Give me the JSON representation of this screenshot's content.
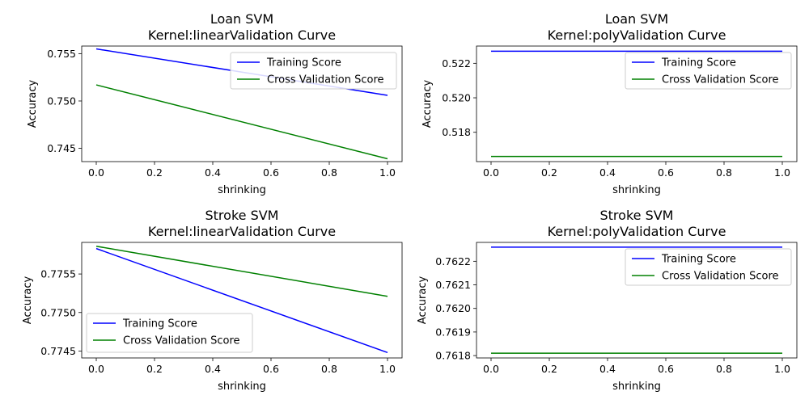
{
  "chart_data": [
    {
      "type": "line",
      "title_line1": "Loan SVM",
      "title_line2": "Kernel:linearValidation Curve",
      "xlabel": "shrinking",
      "ylabel": "Accuracy",
      "x": [
        0,
        1
      ],
      "xlim": [
        -0.05,
        1.05
      ],
      "ylim": [
        0.7436,
        0.7558
      ],
      "xticks": [
        0.0,
        0.2,
        0.4,
        0.6,
        0.8,
        1.0
      ],
      "xtick_labels": [
        "0.0",
        "0.2",
        "0.4",
        "0.6",
        "0.8",
        "1.0"
      ],
      "yticks": [
        0.745,
        0.75,
        0.755
      ],
      "ytick_labels": [
        "0.745",
        "0.750",
        "0.755"
      ],
      "legend_loc": "upper right",
      "grid": false,
      "series": [
        {
          "name": "Training Score",
          "color": "#0000ff",
          "values": [
            0.7555,
            0.7506
          ]
        },
        {
          "name": "Cross Validation Score",
          "color": "#008000",
          "values": [
            0.7517,
            0.7439
          ]
        }
      ]
    },
    {
      "type": "line",
      "title_line1": "Loan SVM",
      "title_line2": "Kernel:polyValidation Curve",
      "xlabel": "shrinking",
      "ylabel": "Accuracy",
      "x": [
        0,
        1
      ],
      "xlim": [
        -0.05,
        1.05
      ],
      "ylim": [
        0.5163,
        0.523
      ],
      "xticks": [
        0.0,
        0.2,
        0.4,
        0.6,
        0.8,
        1.0
      ],
      "xtick_labels": [
        "0.0",
        "0.2",
        "0.4",
        "0.6",
        "0.8",
        "1.0"
      ],
      "yticks": [
        0.518,
        0.52,
        0.522
      ],
      "ytick_labels": [
        "0.518",
        "0.520",
        "0.522"
      ],
      "legend_loc": "upper right",
      "grid": false,
      "series": [
        {
          "name": "Training Score",
          "color": "#0000ff",
          "values": [
            0.5227,
            0.5227
          ]
        },
        {
          "name": "Cross Validation Score",
          "color": "#008000",
          "values": [
            0.5166,
            0.5166
          ]
        }
      ]
    },
    {
      "type": "line",
      "title_line1": "Stroke SVM",
      "title_line2": "Kernel:linearValidation Curve",
      "xlabel": "shrinking",
      "ylabel": "Accuracy",
      "x": [
        0,
        1
      ],
      "xlim": [
        -0.05,
        1.05
      ],
      "ylim": [
        0.77441,
        0.77591
      ],
      "xticks": [
        0.0,
        0.2,
        0.4,
        0.6,
        0.8,
        1.0
      ],
      "xtick_labels": [
        "0.0",
        "0.2",
        "0.4",
        "0.6",
        "0.8",
        "1.0"
      ],
      "yticks": [
        0.7745,
        0.775,
        0.7755
      ],
      "ytick_labels": [
        "0.7745",
        "0.7750",
        "0.7755"
      ],
      "legend_loc": "lower left",
      "grid": false,
      "series": [
        {
          "name": "Training Score",
          "color": "#0000ff",
          "values": [
            0.77583,
            0.77448
          ]
        },
        {
          "name": "Cross Validation Score",
          "color": "#008000",
          "values": [
            0.77586,
            0.77521
          ]
        }
      ]
    },
    {
      "type": "line",
      "title_line1": "Stroke SVM",
      "title_line2": "Kernel:polyValidation Curve",
      "xlabel": "shrinking",
      "ylabel": "Accuracy",
      "x": [
        0,
        1
      ],
      "xlim": [
        -0.05,
        1.05
      ],
      "ylim": [
        0.76179,
        0.76228
      ],
      "xticks": [
        0.0,
        0.2,
        0.4,
        0.6,
        0.8,
        1.0
      ],
      "xtick_labels": [
        "0.0",
        "0.2",
        "0.4",
        "0.6",
        "0.8",
        "1.0"
      ],
      "yticks": [
        0.7618,
        0.7619,
        0.762,
        0.7621,
        0.7622
      ],
      "ytick_labels": [
        "0.7618",
        "0.7619",
        "0.7620",
        "0.7621",
        "0.7622"
      ],
      "legend_loc": "upper right",
      "grid": false,
      "series": [
        {
          "name": "Training Score",
          "color": "#0000ff",
          "values": [
            0.76226,
            0.76226
          ]
        },
        {
          "name": "Cross Validation Score",
          "color": "#008000",
          "values": [
            0.76181,
            0.76181
          ]
        }
      ]
    }
  ]
}
